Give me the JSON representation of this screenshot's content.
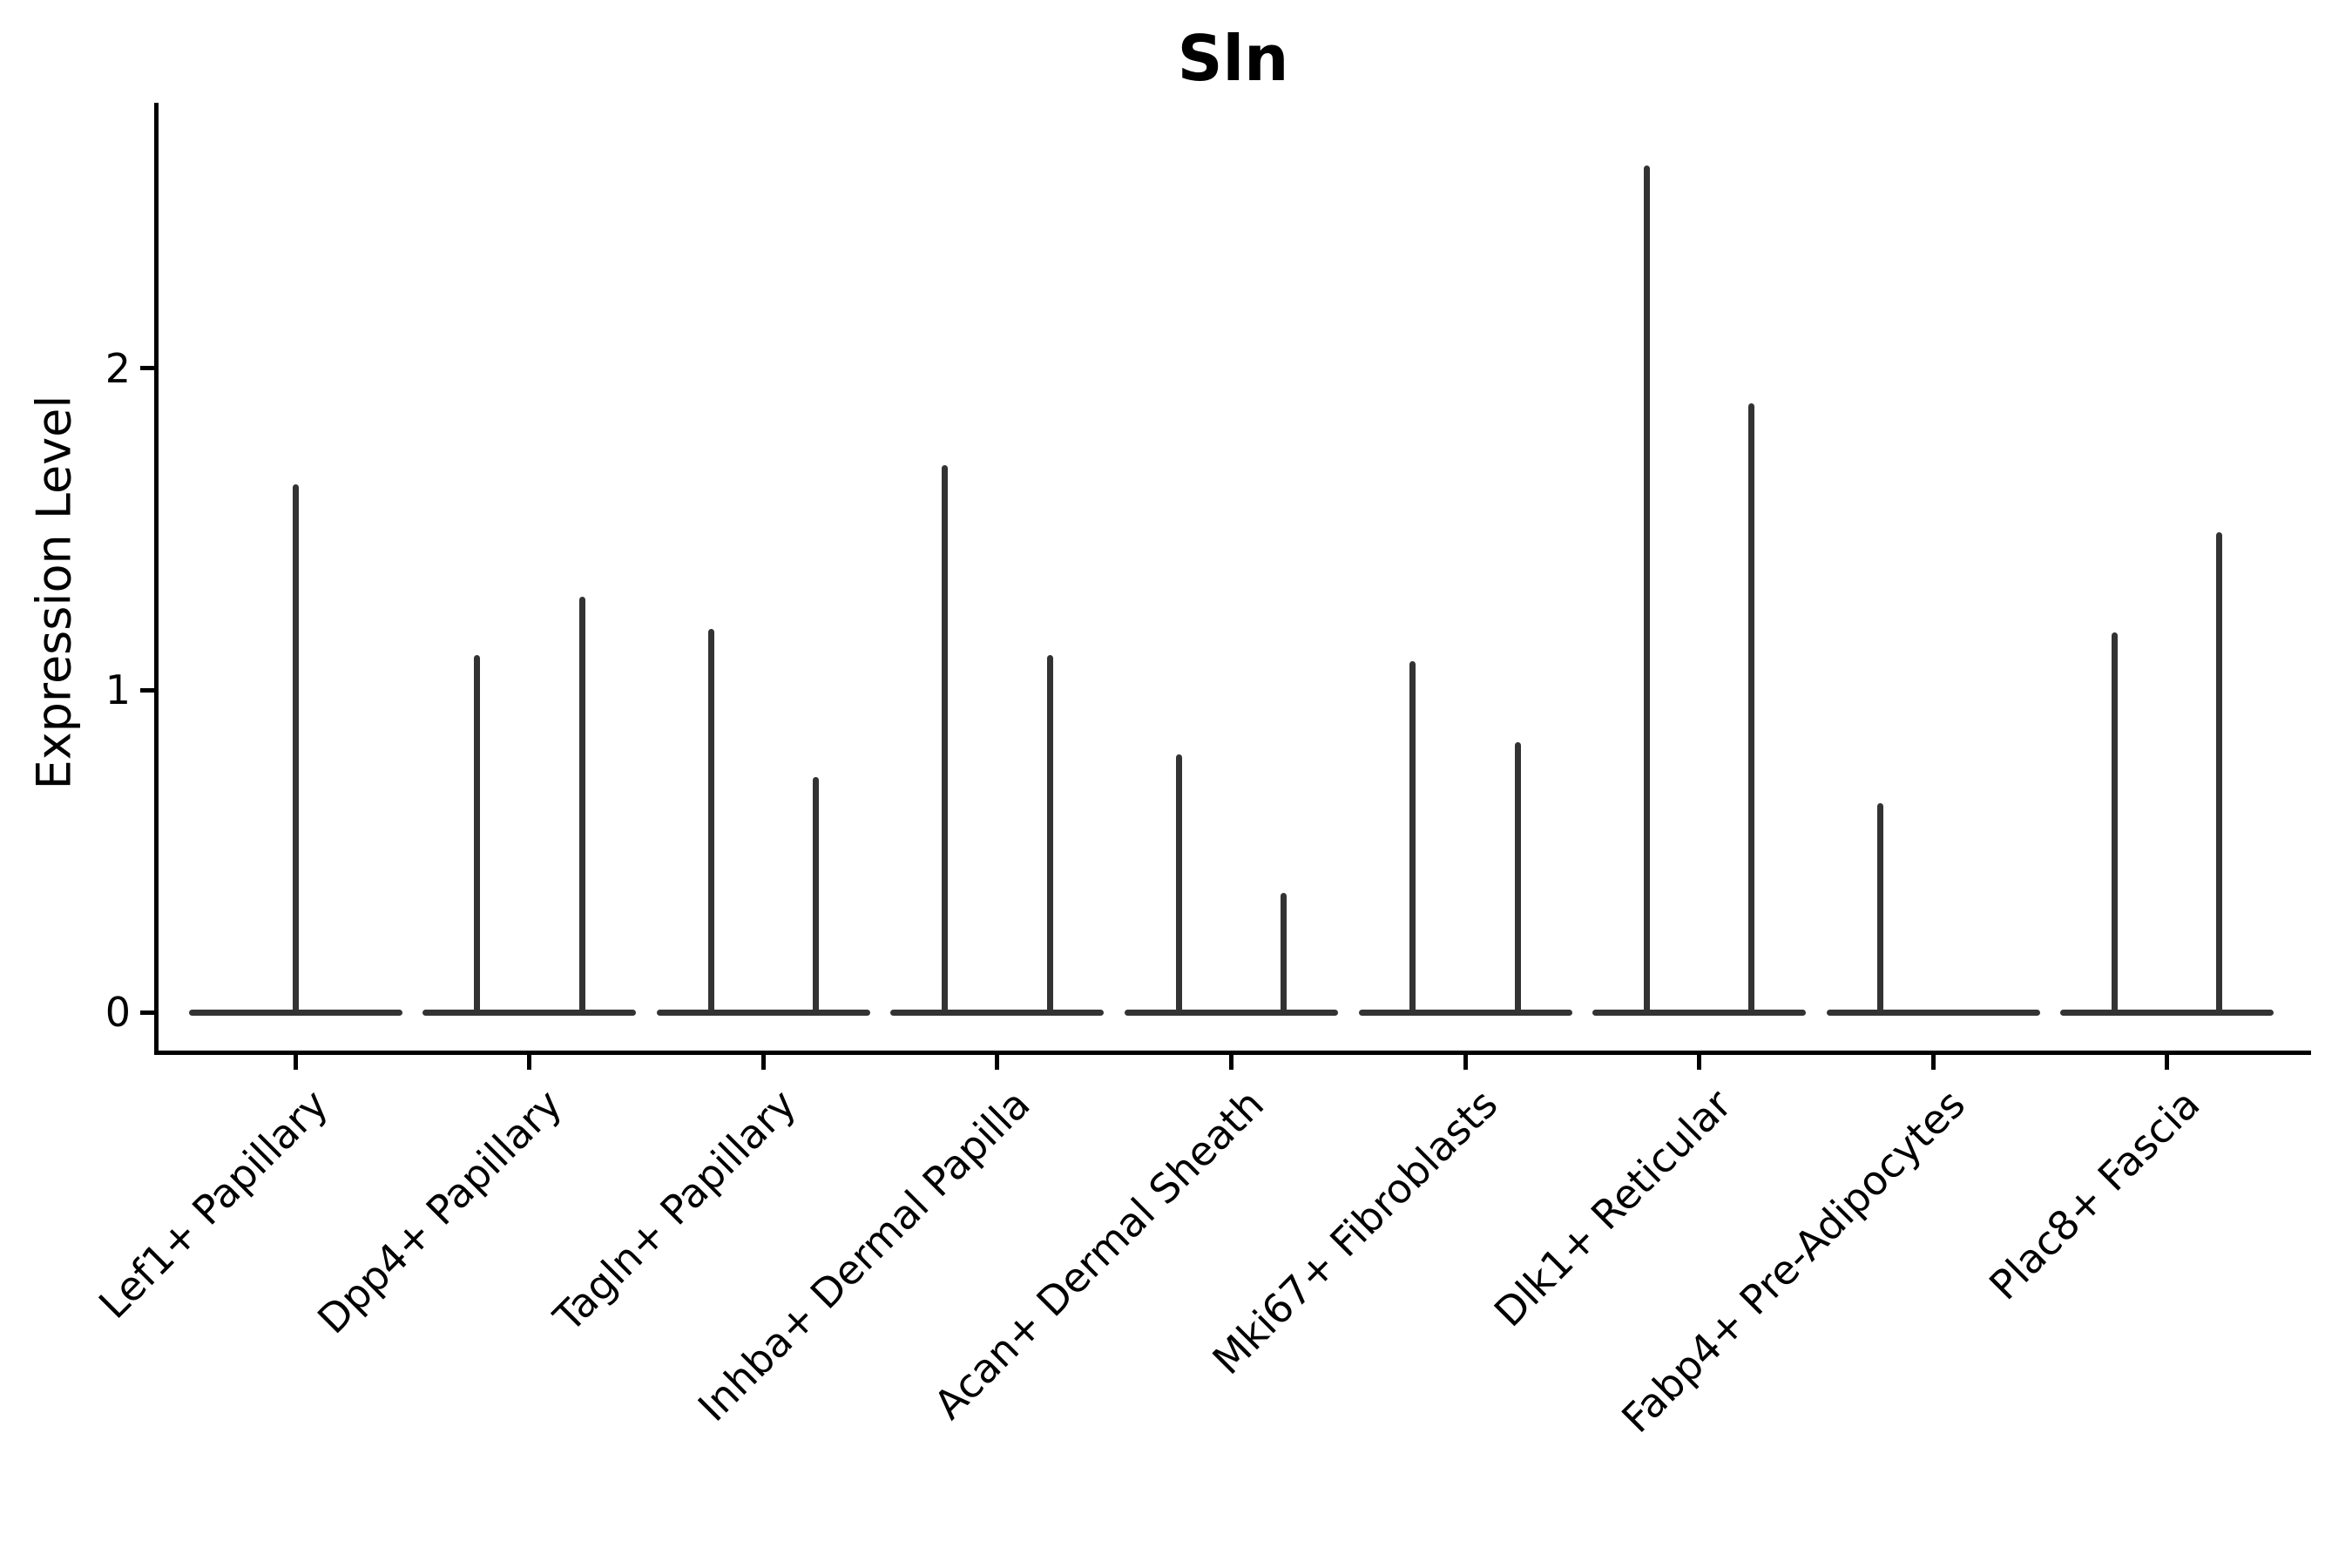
{
  "title": "Sln",
  "y_axis": {
    "label": "Expression Level",
    "ticks": [
      "0",
      "1",
      "2"
    ]
  },
  "colors": {
    "background": "#ffffff",
    "axis": "#000000",
    "text": "#000000",
    "violin": "#333333"
  },
  "chart_data": {
    "type": "violin",
    "title": "Sln",
    "xlabel": "",
    "ylabel": "Expression Level",
    "ylim": [
      -0.12,
      2.82
    ],
    "yticks": [
      0,
      1,
      2
    ],
    "grid": false,
    "legend_position": "none",
    "baseline_value": 0,
    "categories": [
      "Lef1+ Papillary",
      "Dpp4+ Papillary",
      "Tagln+ Papillary",
      "Inhba+ Dermal Papilla",
      "Acan+ Dermal Sheath",
      "Mki67+ Fibroblasts",
      "Dlk1+ Reticular",
      "Fabp4+ Pre-Adipocytes",
      "Plac8+ Fascia"
    ],
    "violins": [
      {
        "category": "Lef1+ Papillary",
        "spikes": [
          {
            "position": "center",
            "max": 1.64
          }
        ]
      },
      {
        "category": "Dpp4+ Papillary",
        "spikes": [
          {
            "position": "left",
            "max": 1.11
          },
          {
            "position": "right",
            "max": 1.29
          }
        ]
      },
      {
        "category": "Tagln+ Papillary",
        "spikes": [
          {
            "position": "left",
            "max": 1.19
          },
          {
            "position": "right",
            "max": 0.73
          }
        ]
      },
      {
        "category": "Inhba+ Dermal Papilla",
        "spikes": [
          {
            "position": "left",
            "max": 1.7
          },
          {
            "position": "right",
            "max": 1.11
          }
        ]
      },
      {
        "category": "Acan+ Dermal Sheath",
        "spikes": [
          {
            "position": "left",
            "max": 0.8
          },
          {
            "position": "right",
            "max": 0.37
          }
        ]
      },
      {
        "category": "Mki67+ Fibroblasts",
        "spikes": [
          {
            "position": "left",
            "max": 1.09
          },
          {
            "position": "right",
            "max": 0.84
          }
        ]
      },
      {
        "category": "Dlk1+ Reticular",
        "spikes": [
          {
            "position": "left",
            "max": 2.63
          },
          {
            "position": "right",
            "max": 1.89
          }
        ]
      },
      {
        "category": "Fabp4+ Pre-Adipocytes",
        "spikes": [
          {
            "position": "left",
            "max": 0.65
          }
        ]
      },
      {
        "category": "Plac8+ Fascia",
        "spikes": [
          {
            "position": "left",
            "max": 1.18
          },
          {
            "position": "right",
            "max": 1.49
          }
        ]
      }
    ]
  }
}
